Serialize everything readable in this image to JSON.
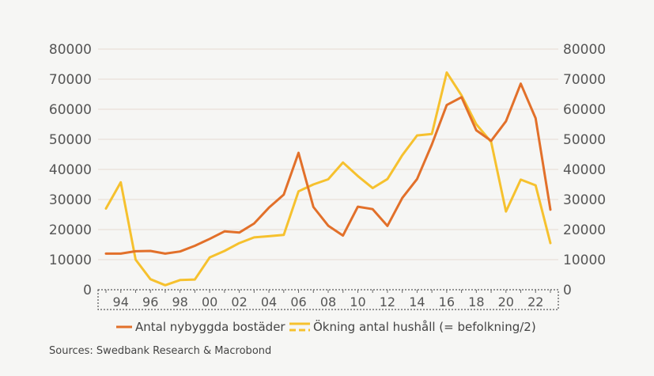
{
  "chart_data": {
    "type": "line",
    "title": "",
    "xlabel": "",
    "ylabel": "",
    "ylim": [
      0,
      80000
    ],
    "yticks": [
      0,
      10000,
      20000,
      30000,
      40000,
      50000,
      60000,
      70000,
      80000
    ],
    "ytick_labels": [
      "0",
      "10000",
      "20000",
      "30000",
      "40000",
      "50000",
      "60000",
      "70000",
      "80000"
    ],
    "secondary_ylim": [
      0,
      80000
    ],
    "x": [
      1993,
      1994,
      1995,
      1996,
      1997,
      1998,
      1999,
      2000,
      2001,
      2002,
      2003,
      2004,
      2005,
      2006,
      2007,
      2008,
      2009,
      2010,
      2011,
      2012,
      2013,
      2014,
      2015,
      2016,
      2017,
      2018,
      2019,
      2020,
      2021,
      2022,
      2023
    ],
    "xticks": [
      1994,
      1996,
      1998,
      2000,
      2002,
      2004,
      2006,
      2008,
      2010,
      2012,
      2014,
      2016,
      2018,
      2020,
      2022
    ],
    "xtick_labels": [
      "94",
      "96",
      "98",
      "00",
      "02",
      "04",
      "06",
      "08",
      "10",
      "12",
      "14",
      "16",
      "18",
      "20",
      "22"
    ],
    "grid": true,
    "legend_position": "bottom",
    "series": [
      {
        "name": "Antal nybyggda bostäder",
        "color": "#e2702a",
        "dash": "solid",
        "values": [
          12000,
          12000,
          12800,
          12900,
          12000,
          12700,
          14600,
          16900,
          19400,
          19000,
          22000,
          27300,
          31600,
          45500,
          27500,
          21300,
          18000,
          27600,
          26800,
          21200,
          30500,
          36800,
          48300,
          61400,
          64000,
          53000,
          49500,
          56000,
          68500,
          57000,
          26600
        ]
      },
      {
        "name": "Ökning antal hushåll (= befolkning/2)",
        "color": "#f6c12e",
        "dash": "solid",
        "values": [
          27000,
          35700,
          10000,
          3500,
          1500,
          3200,
          3400,
          10700,
          12900,
          15500,
          17400,
          17800,
          18200,
          32700,
          35000,
          36700,
          42300,
          37800,
          33800,
          36800,
          44700,
          51300,
          51800,
          72200,
          64600,
          55000,
          49100,
          26000,
          36600,
          34700,
          15500
        ]
      }
    ]
  },
  "source": "Sources: Swedbank Research & Macrobond",
  "legend": {
    "line_icon": "solid-line-icon",
    "dashed_icon": "dashed-line-icon"
  }
}
